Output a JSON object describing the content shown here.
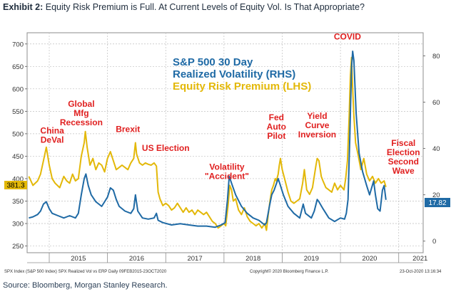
{
  "header": {
    "exhibit_label": "Exhibit 2:",
    "title": "Equity Risk Premium is Full. At Current Levels of Equity Vol. Is That Appropriate?"
  },
  "footer": {
    "source": "Source: Bloomberg, Morgan Stanley Research."
  },
  "chart_data": {
    "type": "line",
    "legend": {
      "vol_line1": "S&P 500 30 Day",
      "vol_line2": "Realized Volatility (RHS)",
      "erp": "Equity Risk Premium (LHS)"
    },
    "colors": {
      "erp": "#e3b808",
      "vol": "#1f6aa5",
      "annotation": "#e01f1f",
      "grid": "#bfbfbf"
    },
    "x_range": [
      2014.62,
      2021.42
    ],
    "x_tick_labels": [
      "2015",
      "2016",
      "2017",
      "2018",
      "2019",
      "2020",
      "2021"
    ],
    "x_tick_values": [
      2015,
      2016,
      2017,
      2018,
      2019,
      2020,
      2021
    ],
    "y_left": {
      "range": [
        235,
        725
      ],
      "ticks": [
        250,
        300,
        350,
        400,
        450,
        500,
        550,
        600,
        650,
        700
      ]
    },
    "y_right": {
      "range": [
        -5,
        90
      ],
      "ticks": [
        0,
        20,
        40,
        60,
        80
      ]
    },
    "last_values": {
      "erp": "381.3",
      "vol": "17.82"
    },
    "series": [
      {
        "name": "Equity Risk Premium (LHS)",
        "axis": "left",
        "points": [
          [
            2014.65,
            405
          ],
          [
            2014.72,
            385
          ],
          [
            2014.8,
            395
          ],
          [
            2014.85,
            410
          ],
          [
            2014.9,
            440
          ],
          [
            2014.95,
            470
          ],
          [
            2015.0,
            430
          ],
          [
            2015.05,
            400
          ],
          [
            2015.1,
            390
          ],
          [
            2015.18,
            380
          ],
          [
            2015.25,
            405
          ],
          [
            2015.3,
            395
          ],
          [
            2015.35,
            390
          ],
          [
            2015.4,
            410
          ],
          [
            2015.45,
            395
          ],
          [
            2015.5,
            400
          ],
          [
            2015.55,
            450
          ],
          [
            2015.6,
            480
          ],
          [
            2015.62,
            505
          ],
          [
            2015.65,
            470
          ],
          [
            2015.7,
            430
          ],
          [
            2015.75,
            445
          ],
          [
            2015.8,
            420
          ],
          [
            2015.85,
            435
          ],
          [
            2015.9,
            430
          ],
          [
            2015.95,
            415
          ],
          [
            2016.0,
            445
          ],
          [
            2016.05,
            460
          ],
          [
            2016.1,
            440
          ],
          [
            2016.15,
            420
          ],
          [
            2016.2,
            425
          ],
          [
            2016.25,
            430
          ],
          [
            2016.3,
            425
          ],
          [
            2016.35,
            420
          ],
          [
            2016.4,
            435
          ],
          [
            2016.45,
            445
          ],
          [
            2016.48,
            480
          ],
          [
            2016.5,
            455
          ],
          [
            2016.55,
            435
          ],
          [
            2016.6,
            430
          ],
          [
            2016.65,
            435
          ],
          [
            2016.7,
            432
          ],
          [
            2016.75,
            430
          ],
          [
            2016.8,
            435
          ],
          [
            2016.84,
            428
          ],
          [
            2016.87,
            370
          ],
          [
            2016.9,
            355
          ],
          [
            2016.95,
            340
          ],
          [
            2017.0,
            345
          ],
          [
            2017.05,
            340
          ],
          [
            2017.1,
            330
          ],
          [
            2017.15,
            335
          ],
          [
            2017.2,
            345
          ],
          [
            2017.25,
            335
          ],
          [
            2017.3,
            325
          ],
          [
            2017.35,
            335
          ],
          [
            2017.4,
            325
          ],
          [
            2017.45,
            330
          ],
          [
            2017.5,
            320
          ],
          [
            2017.55,
            330
          ],
          [
            2017.6,
            325
          ],
          [
            2017.65,
            320
          ],
          [
            2017.7,
            325
          ],
          [
            2017.75,
            315
          ],
          [
            2017.8,
            305
          ],
          [
            2017.85,
            300
          ],
          [
            2017.9,
            290
          ],
          [
            2017.95,
            295
          ],
          [
            2018.0,
            300
          ],
          [
            2018.03,
            295
          ],
          [
            2018.07,
            340
          ],
          [
            2018.1,
            385
          ],
          [
            2018.13,
            375
          ],
          [
            2018.16,
            350
          ],
          [
            2018.2,
            355
          ],
          [
            2018.25,
            330
          ],
          [
            2018.3,
            320
          ],
          [
            2018.35,
            335
          ],
          [
            2018.4,
            315
          ],
          [
            2018.45,
            305
          ],
          [
            2018.5,
            300
          ],
          [
            2018.55,
            295
          ],
          [
            2018.6,
            300
          ],
          [
            2018.65,
            290
          ],
          [
            2018.7,
            300
          ],
          [
            2018.73,
            285
          ],
          [
            2018.76,
            320
          ],
          [
            2018.79,
            350
          ],
          [
            2018.82,
            375
          ],
          [
            2018.85,
            385
          ],
          [
            2018.88,
            400
          ],
          [
            2018.9,
            395
          ],
          [
            2018.93,
            410
          ],
          [
            2018.95,
            430
          ],
          [
            2018.97,
            445
          ],
          [
            2019.0,
            420
          ],
          [
            2019.05,
            395
          ],
          [
            2019.1,
            370
          ],
          [
            2019.15,
            350
          ],
          [
            2019.2,
            345
          ],
          [
            2019.25,
            350
          ],
          [
            2019.3,
            355
          ],
          [
            2019.35,
            390
          ],
          [
            2019.38,
            420
          ],
          [
            2019.42,
            375
          ],
          [
            2019.47,
            365
          ],
          [
            2019.52,
            380
          ],
          [
            2019.58,
            430
          ],
          [
            2019.6,
            445
          ],
          [
            2019.63,
            440
          ],
          [
            2019.67,
            405
          ],
          [
            2019.7,
            395
          ],
          [
            2019.75,
            380
          ],
          [
            2019.8,
            375
          ],
          [
            2019.85,
            370
          ],
          [
            2019.9,
            390
          ],
          [
            2019.95,
            375
          ],
          [
            2020.0,
            385
          ],
          [
            2020.03,
            380
          ],
          [
            2020.06,
            375
          ],
          [
            2020.09,
            400
          ],
          [
            2020.12,
            440
          ],
          [
            2020.15,
            540
          ],
          [
            2020.17,
            630
          ],
          [
            2020.19,
            670
          ],
          [
            2020.21,
            600
          ],
          [
            2020.23,
            540
          ],
          [
            2020.26,
            480
          ],
          [
            2020.3,
            455
          ],
          [
            2020.35,
            420
          ],
          [
            2020.4,
            445
          ],
          [
            2020.45,
            410
          ],
          [
            2020.5,
            395
          ],
          [
            2020.55,
            405
          ],
          [
            2020.6,
            390
          ],
          [
            2020.65,
            400
          ],
          [
            2020.7,
            390
          ],
          [
            2020.75,
            395
          ],
          [
            2020.78,
            381.3
          ]
        ]
      },
      {
        "name": "S&P 500 30 Day Realized Volatility (RHS)",
        "axis": "right",
        "points": [
          [
            2014.65,
            10
          ],
          [
            2014.72,
            10.5
          ],
          [
            2014.8,
            11.5
          ],
          [
            2014.85,
            13
          ],
          [
            2014.9,
            16
          ],
          [
            2014.95,
            17
          ],
          [
            2015.0,
            14
          ],
          [
            2015.05,
            12
          ],
          [
            2015.15,
            11
          ],
          [
            2015.25,
            10
          ],
          [
            2015.35,
            11
          ],
          [
            2015.45,
            10
          ],
          [
            2015.5,
            12
          ],
          [
            2015.55,
            20
          ],
          [
            2015.6,
            27
          ],
          [
            2015.63,
            29
          ],
          [
            2015.67,
            24
          ],
          [
            2015.72,
            20
          ],
          [
            2015.8,
            17
          ],
          [
            2015.9,
            15
          ],
          [
            2015.95,
            17
          ],
          [
            2016.0,
            19
          ],
          [
            2016.05,
            23
          ],
          [
            2016.1,
            22
          ],
          [
            2016.15,
            18
          ],
          [
            2016.2,
            15
          ],
          [
            2016.3,
            13
          ],
          [
            2016.4,
            12
          ],
          [
            2016.45,
            14
          ],
          [
            2016.48,
            20
          ],
          [
            2016.52,
            13
          ],
          [
            2016.6,
            10
          ],
          [
            2016.7,
            9.5
          ],
          [
            2016.8,
            10
          ],
          [
            2016.84,
            12
          ],
          [
            2016.87,
            9
          ],
          [
            2016.95,
            8
          ],
          [
            2017.1,
            7
          ],
          [
            2017.25,
            7.5
          ],
          [
            2017.4,
            7
          ],
          [
            2017.55,
            6.5
          ],
          [
            2017.7,
            6.5
          ],
          [
            2017.85,
            6
          ],
          [
            2017.95,
            7
          ],
          [
            2018.02,
            8
          ],
          [
            2018.06,
            18
          ],
          [
            2018.09,
            28
          ],
          [
            2018.13,
            25
          ],
          [
            2018.2,
            20
          ],
          [
            2018.3,
            15
          ],
          [
            2018.4,
            12
          ],
          [
            2018.5,
            10
          ],
          [
            2018.6,
            9
          ],
          [
            2018.7,
            7
          ],
          [
            2018.73,
            8
          ],
          [
            2018.78,
            15
          ],
          [
            2018.82,
            20
          ],
          [
            2018.86,
            22
          ],
          [
            2018.93,
            27
          ],
          [
            2018.97,
            24
          ],
          [
            2019.02,
            20
          ],
          [
            2019.1,
            15
          ],
          [
            2019.2,
            12
          ],
          [
            2019.3,
            10
          ],
          [
            2019.36,
            16
          ],
          [
            2019.4,
            12
          ],
          [
            2019.5,
            10
          ],
          [
            2019.55,
            13
          ],
          [
            2019.6,
            18
          ],
          [
            2019.63,
            17
          ],
          [
            2019.7,
            14
          ],
          [
            2019.8,
            10
          ],
          [
            2019.9,
            8.5
          ],
          [
            2020.0,
            10
          ],
          [
            2020.07,
            9.5
          ],
          [
            2020.1,
            12
          ],
          [
            2020.13,
            18
          ],
          [
            2020.16,
            45
          ],
          [
            2020.19,
            75
          ],
          [
            2020.21,
            82
          ],
          [
            2020.23,
            78
          ],
          [
            2020.27,
            55
          ],
          [
            2020.32,
            38
          ],
          [
            2020.38,
            30
          ],
          [
            2020.45,
            24
          ],
          [
            2020.5,
            20
          ],
          [
            2020.57,
            26
          ],
          [
            2020.6,
            20
          ],
          [
            2020.64,
            14
          ],
          [
            2020.68,
            13
          ],
          [
            2020.72,
            22
          ],
          [
            2020.75,
            24
          ],
          [
            2020.78,
            17.82
          ]
        ]
      }
    ],
    "annotations": [
      {
        "lines": [
          "China",
          "DeVal"
        ],
        "x": 2015.05,
        "y": 501
      },
      {
        "lines": [
          "Global",
          "Mfg",
          "Recession"
        ],
        "x": 2015.55,
        "y": 560
      },
      {
        "lines": [
          "Brexit"
        ],
        "x": 2016.35,
        "y": 504
      },
      {
        "lines": [
          "US Election"
        ],
        "x": 2017.0,
        "y": 462
      },
      {
        "lines": [
          "Volatility",
          "\"Accident\""
        ],
        "x": 2018.05,
        "y": 420
      },
      {
        "lines": [
          "Fed",
          "Auto",
          "Pilot"
        ],
        "x": 2018.9,
        "y": 530
      },
      {
        "lines": [
          "Yield",
          "Curve",
          "Inversion"
        ],
        "x": 2019.6,
        "y": 533
      },
      {
        "lines": [
          "COVID"
        ],
        "x": 2020.12,
        "y": 710
      },
      {
        "lines": [
          "Fiscal",
          "Election",
          "Second",
          "Wave"
        ],
        "x": 2021.08,
        "y": 473
      }
    ],
    "footer_notes": {
      "left": "SPX Index (S&P 500 Index) SPX Realized Vol vs ERP  Daily 09FEB2015-23OCT2020",
      "center": "Copyright© 2020 Bloomberg Finance L.P.",
      "right": "23-Oct-2020 13:16:34"
    }
  }
}
